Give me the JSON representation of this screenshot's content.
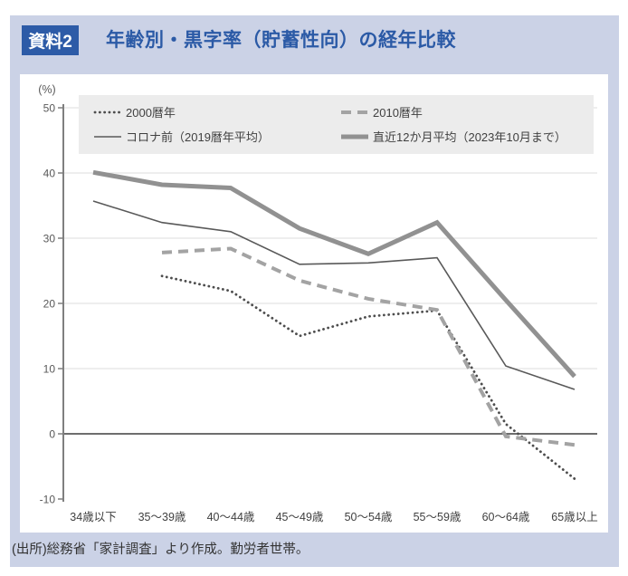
{
  "header": {
    "badge": "資料2",
    "title": "年齢別・黒字率（貯蓄性向）の経年比較"
  },
  "source_note": "(出所)総務省「家計調査」より作成。勤労者世帯。",
  "colors": {
    "page_background": "#cbd2e6",
    "badge_blue": "#2d5ba7",
    "title_blue": "#2b5aa6",
    "panel_white": "#ffffff",
    "legend_background": "#ececec",
    "gridline": "#dedede",
    "axis_line": "#7f7f7f",
    "zero_line": "#595959",
    "tick_text": "#595959",
    "category_text": "#404040"
  },
  "chart_data": {
    "type": "line",
    "unit_label": "(%)",
    "categories": [
      "34歳以下",
      "35～39歳",
      "40～44歳",
      "45～49歳",
      "50～54歳",
      "55～59歳",
      "60～64歳",
      "65歳以上"
    ],
    "series": [
      {
        "name": "2000暦年",
        "style": "dotted",
        "color": "#4d4d4d",
        "values": [
          null,
          24.2,
          21.9,
          15.0,
          18.0,
          18.9,
          1.5,
          -6.9
        ]
      },
      {
        "name": "2010暦年",
        "style": "dashed",
        "color": "#a3a3a3",
        "values": [
          null,
          27.8,
          28.4,
          23.5,
          20.7,
          19.0,
          -0.4,
          -1.7
        ]
      },
      {
        "name": "コロナ前（2019暦年平均）",
        "style": "solid-thin",
        "color": "#595959",
        "values": [
          35.7,
          32.4,
          31.0,
          26.0,
          26.2,
          27.0,
          10.4,
          6.8
        ]
      },
      {
        "name": "直近12か月平均（2023年10月まで）",
        "style": "solid-thick",
        "color": "#919191",
        "values": [
          40.1,
          38.2,
          37.7,
          31.5,
          27.6,
          32.4,
          20.5,
          8.8
        ]
      }
    ],
    "ylim": [
      -10,
      50
    ],
    "yticks": [
      50,
      40,
      30,
      20,
      10,
      0,
      -10
    ],
    "grid": true,
    "legend_position": "top-inside"
  }
}
